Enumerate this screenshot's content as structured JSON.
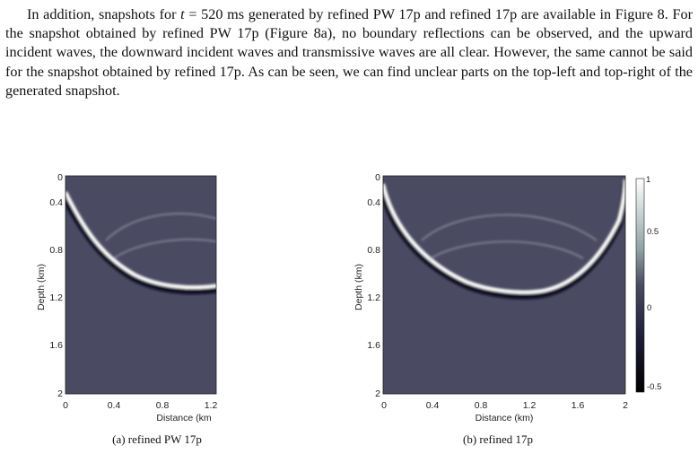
{
  "paragraph": {
    "lead": "In addition, snapshots for ",
    "math_var": "t",
    "math_eq": " = 520 ms",
    "rest": " generated by refined PW 17p and refined 17p are available in Figure 8. For the snapshot obtained by refined PW 17p (Figure 8a), no boundary reflections can be observed, and the upward incident waves, the downward incident waves and transmissive waves are all clear. However, the same cannot be said for the snapshot obtained by refined 17p. As can be seen, we can find unclear parts on the top-left and top-right of the generated snapshot."
  },
  "figures": [
    {
      "caption": "(a) refined PW 17p",
      "ylabel": "Depth (km)",
      "xlabel": "Distance (km",
      "xticks": [
        "0",
        "0.4",
        "0.8",
        "1.2"
      ],
      "yticks": [
        "0",
        "0.4",
        "0.8",
        "1.2",
        "1.6",
        "2"
      ]
    },
    {
      "caption": "(b) refined 17p",
      "ylabel": "Depth (km)",
      "xlabel": "Distance (km)",
      "xticks": [
        "0",
        "0.4",
        "0.8",
        "1.2",
        "1.6",
        "2"
      ],
      "yticks": [
        "0",
        "0.4",
        "0.8",
        "1.2",
        "1.6",
        "2"
      ]
    }
  ],
  "colorbar": {
    "ticks": [
      "1",
      "0.5",
      "0",
      "-0.5"
    ],
    "colors": {
      "top": "#ffffff",
      "mid": "#4a4a62",
      "bottom": "#000000"
    }
  },
  "colors": {
    "background_field": "#4a4a62"
  }
}
